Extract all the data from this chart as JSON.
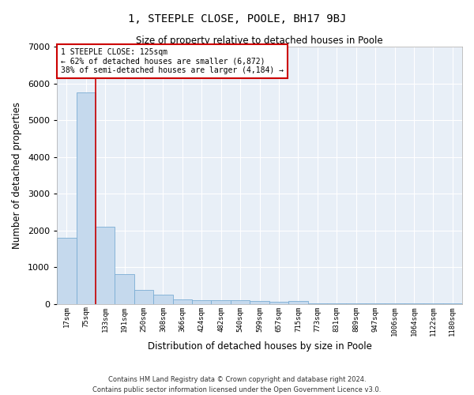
{
  "title": "1, STEEPLE CLOSE, POOLE, BH17 9BJ",
  "subtitle": "Size of property relative to detached houses in Poole",
  "xlabel": "Distribution of detached houses by size in Poole",
  "ylabel": "Number of detached properties",
  "footer_line1": "Contains HM Land Registry data © Crown copyright and database right 2024.",
  "footer_line2": "Contains public sector information licensed under the Open Government Licence v3.0.",
  "bar_color": "#c5d9ed",
  "bar_edge_color": "#7aadd4",
  "background_color": "#e8eff7",
  "grid_color": "#ffffff",
  "annotation_box_color": "#cc0000",
  "vline_color": "#cc0000",
  "categories": [
    "17sqm",
    "75sqm",
    "133sqm",
    "191sqm",
    "250sqm",
    "308sqm",
    "366sqm",
    "424sqm",
    "482sqm",
    "540sqm",
    "599sqm",
    "657sqm",
    "715sqm",
    "773sqm",
    "831sqm",
    "889sqm",
    "947sqm",
    "1006sqm",
    "1064sqm",
    "1122sqm",
    "1180sqm"
  ],
  "values": [
    1800,
    5750,
    2100,
    820,
    370,
    250,
    120,
    110,
    90,
    90,
    70,
    50,
    80,
    10,
    10,
    10,
    10,
    10,
    10,
    10,
    10
  ],
  "vline_x_idx": 1.5,
  "ylim": [
    0,
    7000
  ],
  "yticks": [
    0,
    1000,
    2000,
    3000,
    4000,
    5000,
    6000,
    7000
  ],
  "annotation_text_line1": "1 STEEPLE CLOSE: 125sqm",
  "annotation_text_line2": "← 62% of detached houses are smaller (6,872)",
  "annotation_text_line3": "38% of semi-detached houses are larger (4,184) →"
}
